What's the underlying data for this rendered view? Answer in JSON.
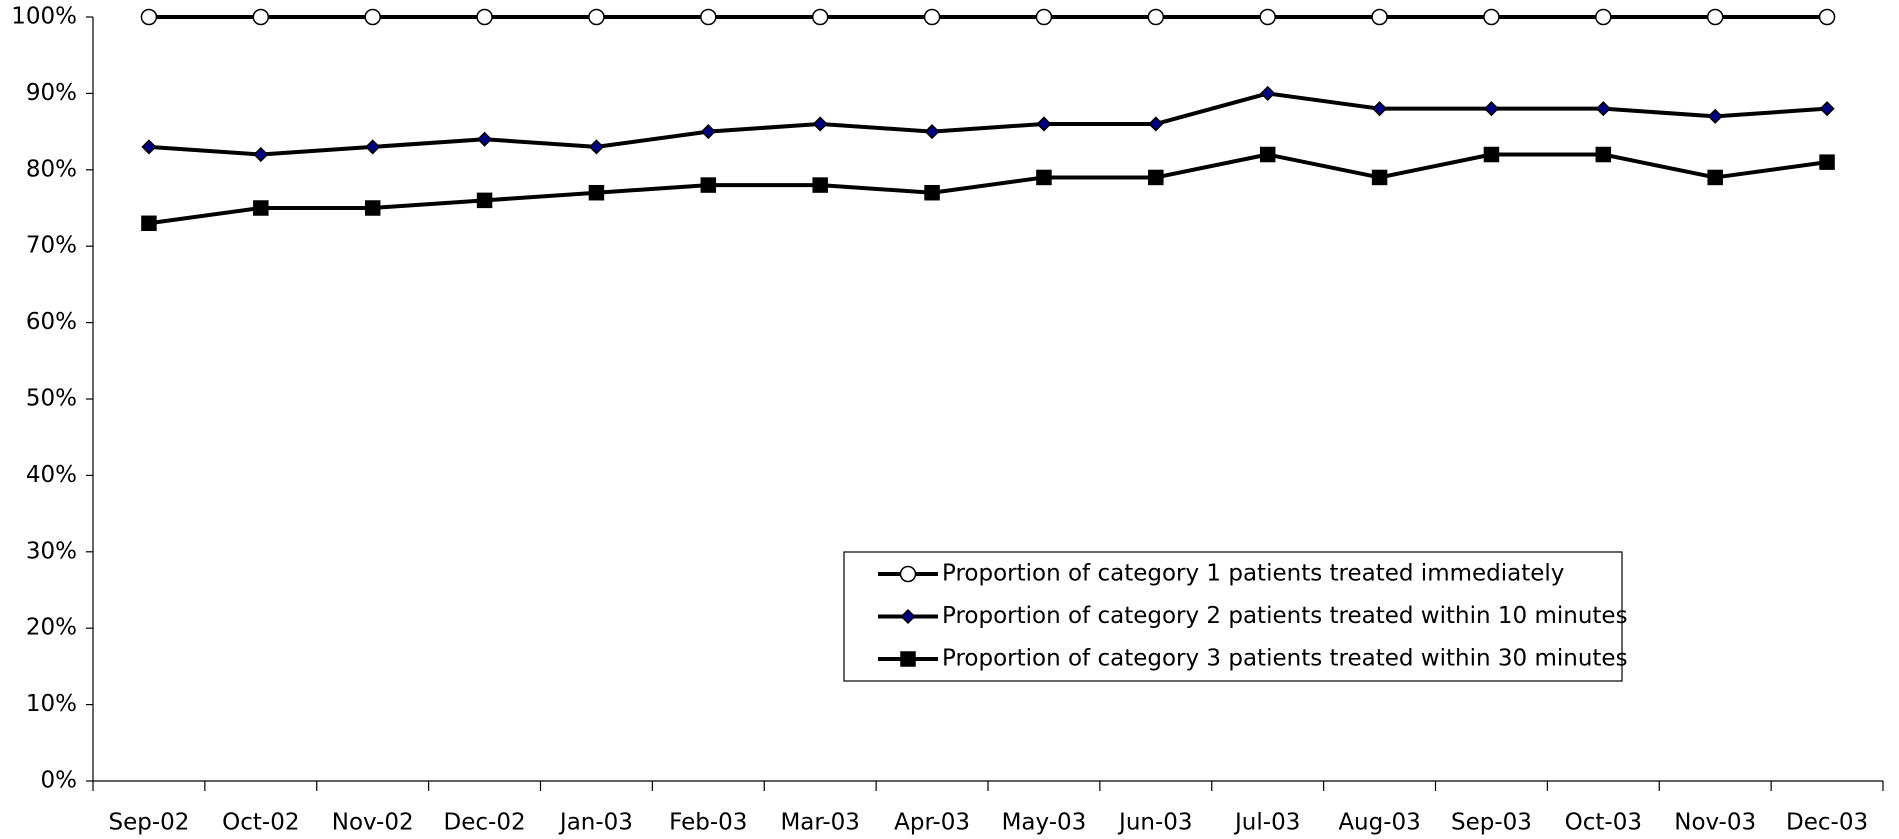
{
  "chart_data": {
    "type": "line",
    "categories": [
      "Sep-02",
      "Oct-02",
      "Nov-02",
      "Dec-02",
      "Jan-03",
      "Feb-03",
      "Mar-03",
      "Apr-03",
      "May-03",
      "Jun-03",
      "Jul-03",
      "Aug-03",
      "Sep-03",
      "Oct-03",
      "Nov-03",
      "Dec-03"
    ],
    "series": [
      {
        "name": "Proportion of category 1 patients treated immediately",
        "color": "#000000",
        "marker": "circle",
        "marker_color": "#ffffff",
        "values": [
          100,
          100,
          100,
          100,
          100,
          100,
          100,
          100,
          100,
          100,
          100,
          100,
          100,
          100,
          100,
          100
        ]
      },
      {
        "name": "Proportion of category 2 patients treated within 10 minutes",
        "color": "#000000",
        "marker": "diamond",
        "marker_color": "#000080",
        "values": [
          83,
          82,
          83,
          84,
          83,
          85,
          86,
          85,
          86,
          86,
          90,
          88,
          88,
          88,
          87,
          88
        ]
      },
      {
        "name": "Proportion of category 3 patients treated within 30 minutes",
        "color": "#000000",
        "marker": "square",
        "marker_color": "#000000",
        "values": [
          73,
          75,
          75,
          76,
          77,
          78,
          78,
          77,
          79,
          79,
          82,
          79,
          82,
          82,
          79,
          81
        ]
      }
    ],
    "ylim": [
      0,
      100
    ],
    "yticks": [
      {
        "value": 0,
        "label": "0%"
      },
      {
        "value": 10,
        "label": "10%"
      },
      {
        "value": 20,
        "label": "20%"
      },
      {
        "value": 30,
        "label": "30%"
      },
      {
        "value": 40,
        "label": "40%"
      },
      {
        "value": 50,
        "label": "50%"
      },
      {
        "value": 60,
        "label": "60%"
      },
      {
        "value": 70,
        "label": "70%"
      },
      {
        "value": 80,
        "label": "80%"
      },
      {
        "value": 90,
        "label": "90%"
      },
      {
        "value": 100,
        "label": "100%"
      }
    ],
    "grid": false,
    "legend": "bottom-right"
  }
}
